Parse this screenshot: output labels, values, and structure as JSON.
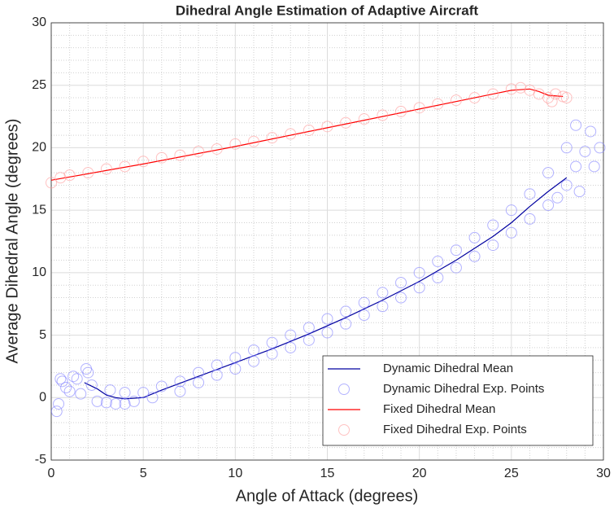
{
  "chart_data": {
    "type": "line",
    "title": "Dihedral Angle Estimation of Adaptive Aircraft",
    "x_label": "Angle of Attack (degrees)",
    "y_label": "Average Dihedral Angle (degrees)",
    "xlim": [
      0,
      30
    ],
    "xticks": [
      0,
      5,
      10,
      15,
      20,
      25,
      30
    ],
    "ylim": [
      -5,
      30
    ],
    "yticks": [
      -5,
      0,
      5,
      10,
      15,
      20,
      25,
      30
    ],
    "grid": true,
    "minor_grid": true,
    "legend": "lower right",
    "series": [
      {
        "name": "Dynamic Dihedral Mean",
        "type": "line",
        "color": "#0000a0",
        "x": [
          1.8,
          2.5,
          3,
          3.5,
          4,
          5,
          6,
          8,
          10,
          12,
          14,
          16,
          18,
          20,
          22,
          24,
          25,
          26,
          27,
          28
        ],
        "values": [
          1.2,
          0.7,
          0.2,
          0.0,
          -0.1,
          0.0,
          0.6,
          1.7,
          2.8,
          3.9,
          5.1,
          6.4,
          7.8,
          9.3,
          11.0,
          12.9,
          14.0,
          15.3,
          16.5,
          17.6
        ]
      },
      {
        "name": "Dynamic Dihedral Exp. Points",
        "type": "scatter",
        "color": "#8080ff",
        "x": [
          0.3,
          0.4,
          0.5,
          0.6,
          0.8,
          1.0,
          1.2,
          1.4,
          1.6,
          1.9,
          2.0,
          2.2,
          2.5,
          3,
          3.5,
          4,
          4.5,
          3.2,
          4,
          5,
          5.5,
          6,
          7,
          7,
          8,
          8,
          9,
          9,
          10,
          10,
          11,
          11,
          12,
          12,
          13,
          13,
          14,
          14,
          15,
          15,
          16,
          16,
          17,
          17,
          18,
          18,
          19,
          19,
          20,
          20,
          21,
          21,
          22,
          22,
          23,
          23,
          24,
          24,
          25,
          25,
          26,
          26,
          27,
          27,
          27.5,
          28,
          28,
          28.5,
          28.7,
          29,
          29.3,
          29.5,
          29.8,
          28.5
        ],
        "values": [
          -1.1,
          -0.5,
          1.5,
          1.3,
          0.8,
          0.5,
          1.7,
          1.5,
          0.3,
          2.3,
          2.0,
          1.0,
          -0.3,
          -0.4,
          -0.5,
          -0.5,
          -0.3,
          0.6,
          0.4,
          0.4,
          0.0,
          0.9,
          0.5,
          1.3,
          1.2,
          2.0,
          1.8,
          2.6,
          2.3,
          3.2,
          2.9,
          3.8,
          3.5,
          4.4,
          4.0,
          5.0,
          4.6,
          5.6,
          5.2,
          6.3,
          5.9,
          6.9,
          6.6,
          7.6,
          7.3,
          8.4,
          8.0,
          9.2,
          8.8,
          10.0,
          9.6,
          10.9,
          10.4,
          11.8,
          11.3,
          12.8,
          12.2,
          13.8,
          13.2,
          15.0,
          14.3,
          16.3,
          15.4,
          18.0,
          16.0,
          17.0,
          20.0,
          21.8,
          16.5,
          19.7,
          21.3,
          18.5,
          20.0,
          18.5
        ]
      },
      {
        "name": "Fixed Dihedral Mean",
        "type": "line",
        "color": "#ff0000",
        "x": [
          0,
          5,
          10,
          15,
          20,
          24,
          25,
          26,
          26.5,
          27,
          27.8
        ],
        "values": [
          17.4,
          18.7,
          20.1,
          21.6,
          23.1,
          24.3,
          24.6,
          24.7,
          24.5,
          24.2,
          24.1
        ]
      },
      {
        "name": "Fixed Dihedral Exp. Points",
        "type": "scatter",
        "color": "#ff9999",
        "x": [
          0,
          0.5,
          1,
          2,
          3,
          4,
          5,
          6,
          7,
          8,
          9,
          10,
          11,
          12,
          13,
          14,
          15,
          16,
          17,
          18,
          19,
          20,
          21,
          22,
          23,
          24,
          25,
          25.5,
          26,
          26.5,
          27,
          27.2,
          27.4,
          27.8,
          28
        ],
        "values": [
          17.2,
          17.6,
          17.8,
          18.0,
          18.3,
          18.5,
          18.9,
          19.2,
          19.4,
          19.7,
          19.9,
          20.3,
          20.5,
          20.8,
          21.1,
          21.4,
          21.7,
          22.0,
          22.3,
          22.6,
          22.9,
          23.2,
          23.5,
          23.8,
          24.0,
          24.3,
          24.7,
          24.8,
          24.6,
          24.3,
          24.0,
          23.7,
          24.3,
          24.1,
          24.0
        ]
      }
    ]
  }
}
